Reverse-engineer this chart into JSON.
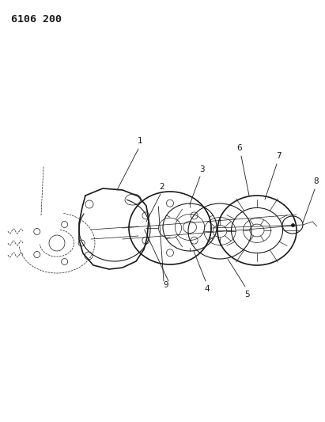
{
  "title": "6106 200",
  "bg_color": "#ffffff",
  "line_color": "#1a1a1a",
  "fig_width": 4.11,
  "fig_height": 5.33,
  "dpi": 100
}
